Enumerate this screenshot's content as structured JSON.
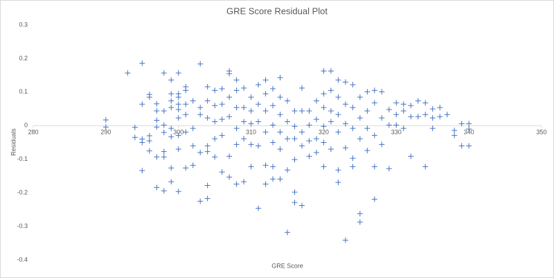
{
  "chart_data": {
    "type": "scatter",
    "title": "GRE Score  Residual Plot",
    "x_label": "GRE Score",
    "y_label": "Residuals",
    "color": "#4472c4",
    "xlim": [
      280,
      350
    ],
    "ylim": [
      -0.4,
      0.3
    ],
    "xticks": [
      280,
      290,
      300,
      310,
      320,
      330,
      340,
      350
    ],
    "yticks": [
      0.3,
      0.2,
      0.1,
      0,
      -0.1,
      -0.2,
      -0.3,
      -0.4
    ],
    "x": [
      290,
      290,
      293,
      294,
      294,
      295,
      295,
      295,
      295,
      295,
      296,
      296,
      296,
      296,
      296,
      297,
      297,
      297,
      297,
      297,
      297,
      298,
      298,
      298,
      298,
      298,
      298,
      298,
      299,
      299,
      299,
      299,
      299,
      299,
      299,
      299,
      300,
      300,
      300,
      300,
      300,
      300,
      300,
      300,
      300,
      301,
      301,
      301,
      301,
      301,
      301,
      302,
      302,
      302,
      302,
      303,
      303,
      303,
      303,
      303,
      304,
      304,
      304,
      304,
      304,
      304,
      304,
      305,
      305,
      305,
      305,
      305,
      306,
      306,
      306,
      306,
      306,
      307,
      307,
      307,
      307,
      307,
      307,
      308,
      308,
      308,
      308,
      308,
      308,
      309,
      309,
      309,
      309,
      309,
      310,
      310,
      310,
      310,
      310,
      311,
      311,
      311,
      311,
      311,
      312,
      312,
      312,
      312,
      312,
      312,
      313,
      313,
      313,
      313,
      313,
      313,
      314,
      314,
      314,
      314,
      314,
      314,
      315,
      315,
      315,
      315,
      315,
      316,
      316,
      316,
      316,
      316,
      316,
      317,
      317,
      317,
      317,
      317,
      318,
      318,
      318,
      318,
      319,
      319,
      319,
      319,
      320,
      320,
      320,
      320,
      320,
      320,
      321,
      321,
      321,
      321,
      321,
      322,
      322,
      322,
      322,
      322,
      322,
      323,
      323,
      323,
      323,
      323,
      324,
      324,
      324,
      324,
      324,
      325,
      325,
      325,
      325,
      325,
      326,
      326,
      326,
      326,
      327,
      327,
      327,
      327,
      327,
      328,
      328,
      328,
      329,
      329,
      329,
      330,
      330,
      330,
      331,
      331,
      331,
      332,
      332,
      332,
      333,
      333,
      334,
      334,
      334,
      335,
      335,
      335,
      336,
      336,
      337,
      338,
      338,
      339,
      339,
      340,
      340,
      340
    ],
    "values": [
      0.017,
      -0.004,
      0.157,
      -0.005,
      -0.035,
      0.186,
      0.064,
      -0.04,
      -0.05,
      -0.134,
      0.093,
      0.085,
      -0.03,
      -0.045,
      -0.075,
      0.065,
      0.044,
      0.016,
      -0.004,
      -0.093,
      -0.184,
      0.157,
      0.044,
      0.002,
      -0.02,
      -0.077,
      -0.093,
      -0.194,
      0.136,
      0.095,
      0.074,
      0.054,
      -0.008,
      -0.033,
      -0.126,
      -0.167,
      0.157,
      0.095,
      0.085,
      0.064,
      0.048,
      0.023,
      -0.029,
      -0.07,
      -0.196,
      0.116,
      0.105,
      0.064,
      0.033,
      -0.019,
      -0.126,
      0.074,
      -0.008,
      -0.06,
      -0.118,
      0.184,
      0.054,
      0.033,
      -0.08,
      -0.225,
      0.116,
      0.074,
      0.023,
      -0.06,
      -0.077,
      -0.178,
      -0.217,
      0.105,
      0.06,
      0.012,
      -0.039,
      -0.093,
      0.11,
      0.064,
      0.019,
      -0.029,
      -0.138,
      0.163,
      0.155,
      0.085,
      0.027,
      -0.091,
      -0.153,
      0.136,
      0.105,
      0.054,
      -0.008,
      -0.056,
      -0.174,
      0.112,
      0.054,
      0.012,
      -0.039,
      -0.167,
      0.085,
      0.044,
      0.006,
      -0.056,
      -0.122,
      0.122,
      0.064,
      0.012,
      -0.06,
      -0.246,
      0.136,
      0.095,
      0.044,
      -0.019,
      -0.118,
      -0.174,
      0.11,
      0.06,
      0.002,
      -0.05,
      -0.122,
      -0.159,
      0.143,
      0.085,
      0.033,
      -0.019,
      -0.07,
      -0.159,
      0.074,
      0.012,
      -0.039,
      -0.132,
      -0.318,
      0.044,
      -0.002,
      -0.039,
      -0.101,
      -0.198,
      -0.229,
      0.112,
      0.044,
      -0.019,
      -0.06,
      -0.238,
      0.044,
      0.002,
      -0.045,
      -0.091,
      0.074,
      0.019,
      -0.039,
      -0.08,
      0.163,
      0.095,
      0.054,
      -0.002,
      -0.05,
      -0.122,
      0.163,
      0.105,
      0.044,
      0.012,
      -0.07,
      0.136,
      0.085,
      0.033,
      -0.019,
      -0.132,
      -0.169,
      0.13,
      0.064,
      0.006,
      -0.066,
      -0.341,
      0.122,
      0.054,
      -0.008,
      -0.097,
      -0.122,
      0.085,
      0.023,
      -0.039,
      -0.262,
      -0.287,
      0.101,
      0.044,
      -0.008,
      -0.074,
      0.105,
      0.068,
      -0.029,
      -0.122,
      -0.219,
      0.101,
      0.023,
      -0.056,
      0.048,
      0.002,
      -0.128,
      0.068,
      0.033,
      0.002,
      0.064,
      0.044,
      -0.008,
      0.06,
      0.027,
      -0.091,
      0.074,
      0.027,
      0.068,
      0.033,
      -0.122,
      0.05,
      0.023,
      -0.008,
      0.054,
      0.027,
      0.033,
      -0.014,
      -0.029,
      0.006,
      -0.06,
      0.006,
      -0.01,
      -0.06
    ]
  }
}
